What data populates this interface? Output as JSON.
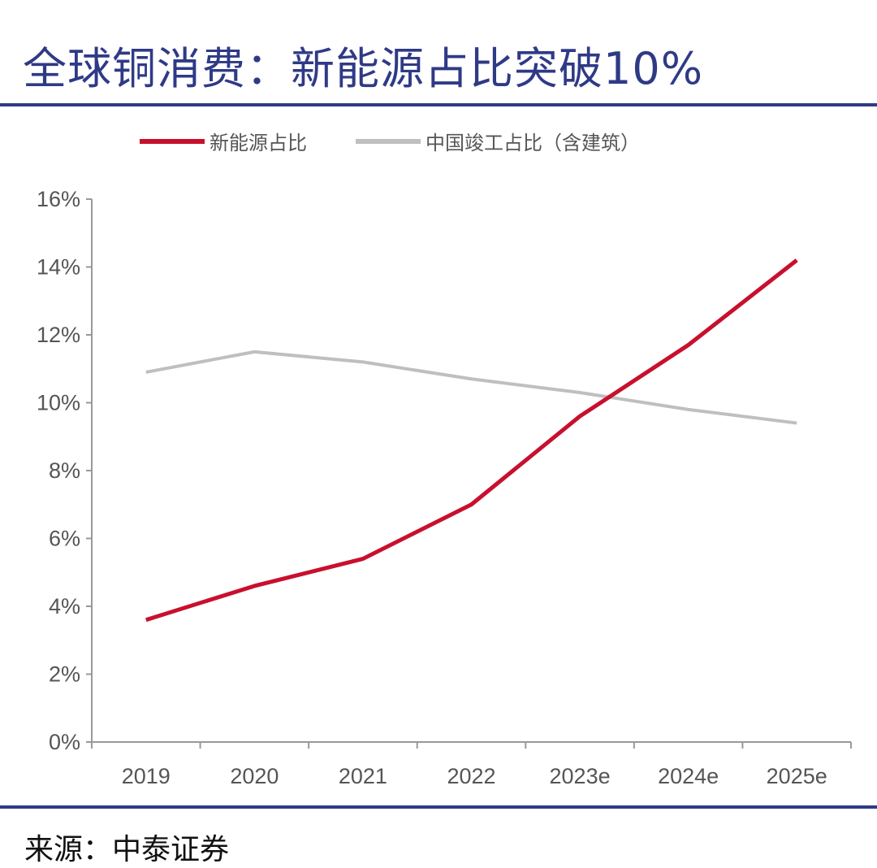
{
  "title": "全球铜消费：新能源占比突破10%",
  "source": "来源：中泰证券",
  "colors": {
    "title": "#2f3a86",
    "new_energy": "#c8102e",
    "china_completion": "#bfbfbf"
  },
  "chart_data": {
    "type": "line",
    "title": "全球铜消费：新能源占比突破10%",
    "xlabel": "",
    "ylabel": "",
    "categories": [
      "2019",
      "2020",
      "2021",
      "2022",
      "2023e",
      "2024e",
      "2025e"
    ],
    "ylim": [
      0,
      16
    ],
    "yticks": [
      "0%",
      "2%",
      "4%",
      "6%",
      "8%",
      "10%",
      "12%",
      "14%",
      "16%"
    ],
    "ytick_values": [
      0,
      2,
      4,
      6,
      8,
      10,
      12,
      14,
      16
    ],
    "grid": false,
    "legend_position": "top",
    "series": [
      {
        "name": "新能源占比",
        "color": "#c8102e",
        "values": [
          3.6,
          4.6,
          5.4,
          7.0,
          9.6,
          11.7,
          14.2
        ]
      },
      {
        "name": "中国竣工占比（含建筑）",
        "color": "#bfbfbf",
        "values": [
          10.9,
          11.5,
          11.2,
          10.7,
          10.3,
          9.8,
          9.4
        ]
      }
    ]
  }
}
